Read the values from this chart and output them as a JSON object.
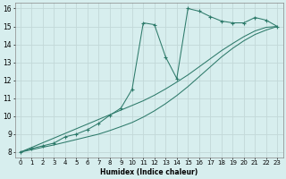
{
  "xlabel": "Humidex (Indice chaleur)",
  "background_color": "#d7eeee",
  "grid_color": "#c2d8d8",
  "line_color": "#2d7a6a",
  "xlim": [
    -0.5,
    23.5
  ],
  "ylim": [
    7.7,
    16.3
  ],
  "xticks": [
    0,
    1,
    2,
    3,
    4,
    5,
    6,
    7,
    8,
    9,
    10,
    11,
    12,
    13,
    14,
    15,
    16,
    17,
    18,
    19,
    20,
    21,
    22,
    23
  ],
  "yticks": [
    8,
    9,
    10,
    11,
    12,
    13,
    14,
    15,
    16
  ],
  "s1_x": [
    0,
    1,
    2,
    3,
    4,
    5,
    6,
    7,
    8,
    9,
    10,
    11,
    12,
    13,
    14,
    15,
    16,
    17,
    18,
    19,
    20,
    21,
    22,
    23
  ],
  "s1_y": [
    8.0,
    8.2,
    8.35,
    8.5,
    8.85,
    9.0,
    9.25,
    9.6,
    10.05,
    10.45,
    11.5,
    15.2,
    15.1,
    13.3,
    12.1,
    16.0,
    15.85,
    15.55,
    15.3,
    15.2,
    15.2,
    15.5,
    15.35,
    15.0
  ],
  "s2_x": [
    0,
    1,
    2,
    3,
    4,
    5,
    6,
    7,
    8,
    9,
    10,
    11,
    12,
    13,
    14,
    15,
    16,
    17,
    18,
    19,
    20,
    21,
    22,
    23
  ],
  "s2_y": [
    8.0,
    8.26,
    8.52,
    8.78,
    9.04,
    9.3,
    9.56,
    9.82,
    10.08,
    10.34,
    10.6,
    10.86,
    11.17,
    11.52,
    11.9,
    12.3,
    12.75,
    13.2,
    13.65,
    14.05,
    14.43,
    14.75,
    14.95,
    15.0
  ],
  "s3_x": [
    0,
    1,
    2,
    3,
    4,
    5,
    6,
    7,
    8,
    9,
    10,
    11,
    12,
    13,
    14,
    15,
    16,
    17,
    18,
    19,
    20,
    21,
    22,
    23
  ],
  "s3_y": [
    8.0,
    8.13,
    8.27,
    8.4,
    8.55,
    8.7,
    8.85,
    9.0,
    9.2,
    9.42,
    9.65,
    9.95,
    10.3,
    10.7,
    11.15,
    11.65,
    12.2,
    12.75,
    13.3,
    13.78,
    14.2,
    14.55,
    14.8,
    15.0
  ]
}
